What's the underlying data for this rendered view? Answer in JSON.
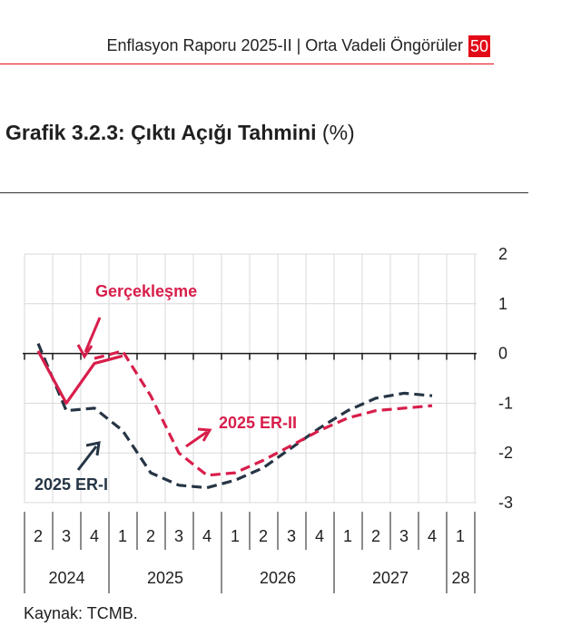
{
  "header": {
    "text": "Enflasyon Raporu 2025-II | Orta Vadeli Öngörüler",
    "page_number": "50"
  },
  "figure": {
    "title": "Grafik 3.2.3: Çıktı Açığı Tahmini",
    "unit": "(%)",
    "source": "Kaynak: TCMB."
  },
  "colors": {
    "accent": "#e30a17",
    "er_ii": "#d81e4b",
    "er_i": "#263545",
    "grid": "#d9d9d9"
  },
  "chart_data": {
    "type": "line",
    "ylim": [
      -3,
      2
    ],
    "yticks": [
      2,
      1,
      0,
      -1,
      -2,
      -3
    ],
    "y_axis_side": "right",
    "grid": true,
    "x_quarter_labels": [
      "2",
      "3",
      "4",
      "1",
      "2",
      "3",
      "4",
      "1",
      "2",
      "3",
      "4",
      "1",
      "2",
      "3",
      "4",
      "1"
    ],
    "x_year_labels": [
      "2024",
      "2025",
      "2026",
      "2027",
      "28"
    ],
    "series": [
      {
        "name": "2025 ER-I",
        "style": "dashed",
        "color": "#263545",
        "values": [
          0.2,
          -1.15,
          -1.1,
          -1.55,
          -2.4,
          -2.65,
          -2.7,
          -2.55,
          -2.3,
          -1.9,
          -1.5,
          -1.15,
          -0.9,
          -0.8,
          -0.85
        ]
      },
      {
        "name": "2025 ER-II",
        "style": "dashed",
        "color": "#d81e4b",
        "values": [
          null,
          null,
          -0.1,
          0.05,
          -0.85,
          -2.0,
          -2.45,
          -2.4,
          -2.15,
          -1.85,
          -1.55,
          -1.3,
          -1.15,
          -1.1,
          -1.05
        ]
      },
      {
        "name": "Gerçekleşme",
        "style": "solid",
        "color": "#d81e4b",
        "values": [
          0.05,
          -1.0,
          -0.2,
          -0.05
        ]
      }
    ],
    "annotations": [
      "Gerçekleşme",
      "2025 ER-II",
      "2025 ER-I"
    ]
  }
}
